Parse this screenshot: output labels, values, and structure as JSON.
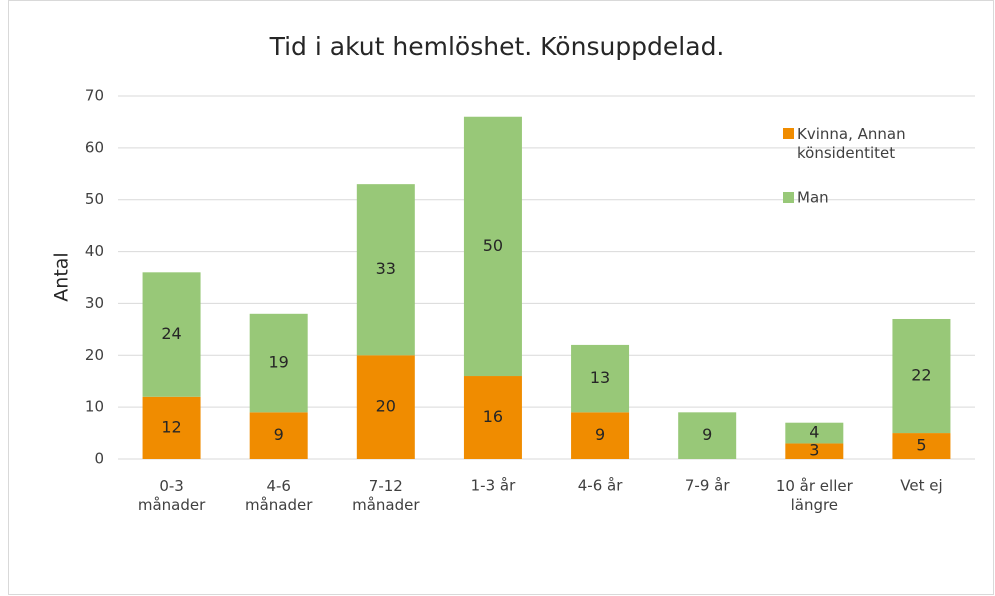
{
  "chart_data": {
    "type": "stacked_bar",
    "title": "Tid i akut hemlöshet. Könsuppdelad.",
    "y_label": "Antal",
    "categories": [
      "0-3\nmånader",
      "4-6\nmånader",
      "7-12\nmånader",
      "1-3 år",
      "4-6 år",
      "7-9 år",
      "10 år eller\nlängre",
      "Vet ej"
    ],
    "series": [
      {
        "name": "Kvinna, Annan\nkönsidentitet",
        "color": "#f08c00",
        "values": [
          12,
          9,
          20,
          16,
          9,
          null,
          3,
          5
        ]
      },
      {
        "name": "Man",
        "color": "#98c878",
        "values": [
          24,
          19,
          33,
          50,
          13,
          9,
          4,
          22
        ]
      }
    ],
    "ylim": [
      0,
      70
    ],
    "yticks": [
      0,
      10,
      20,
      30,
      40,
      50,
      60,
      70
    ],
    "grid": true,
    "legend": "upper right"
  }
}
